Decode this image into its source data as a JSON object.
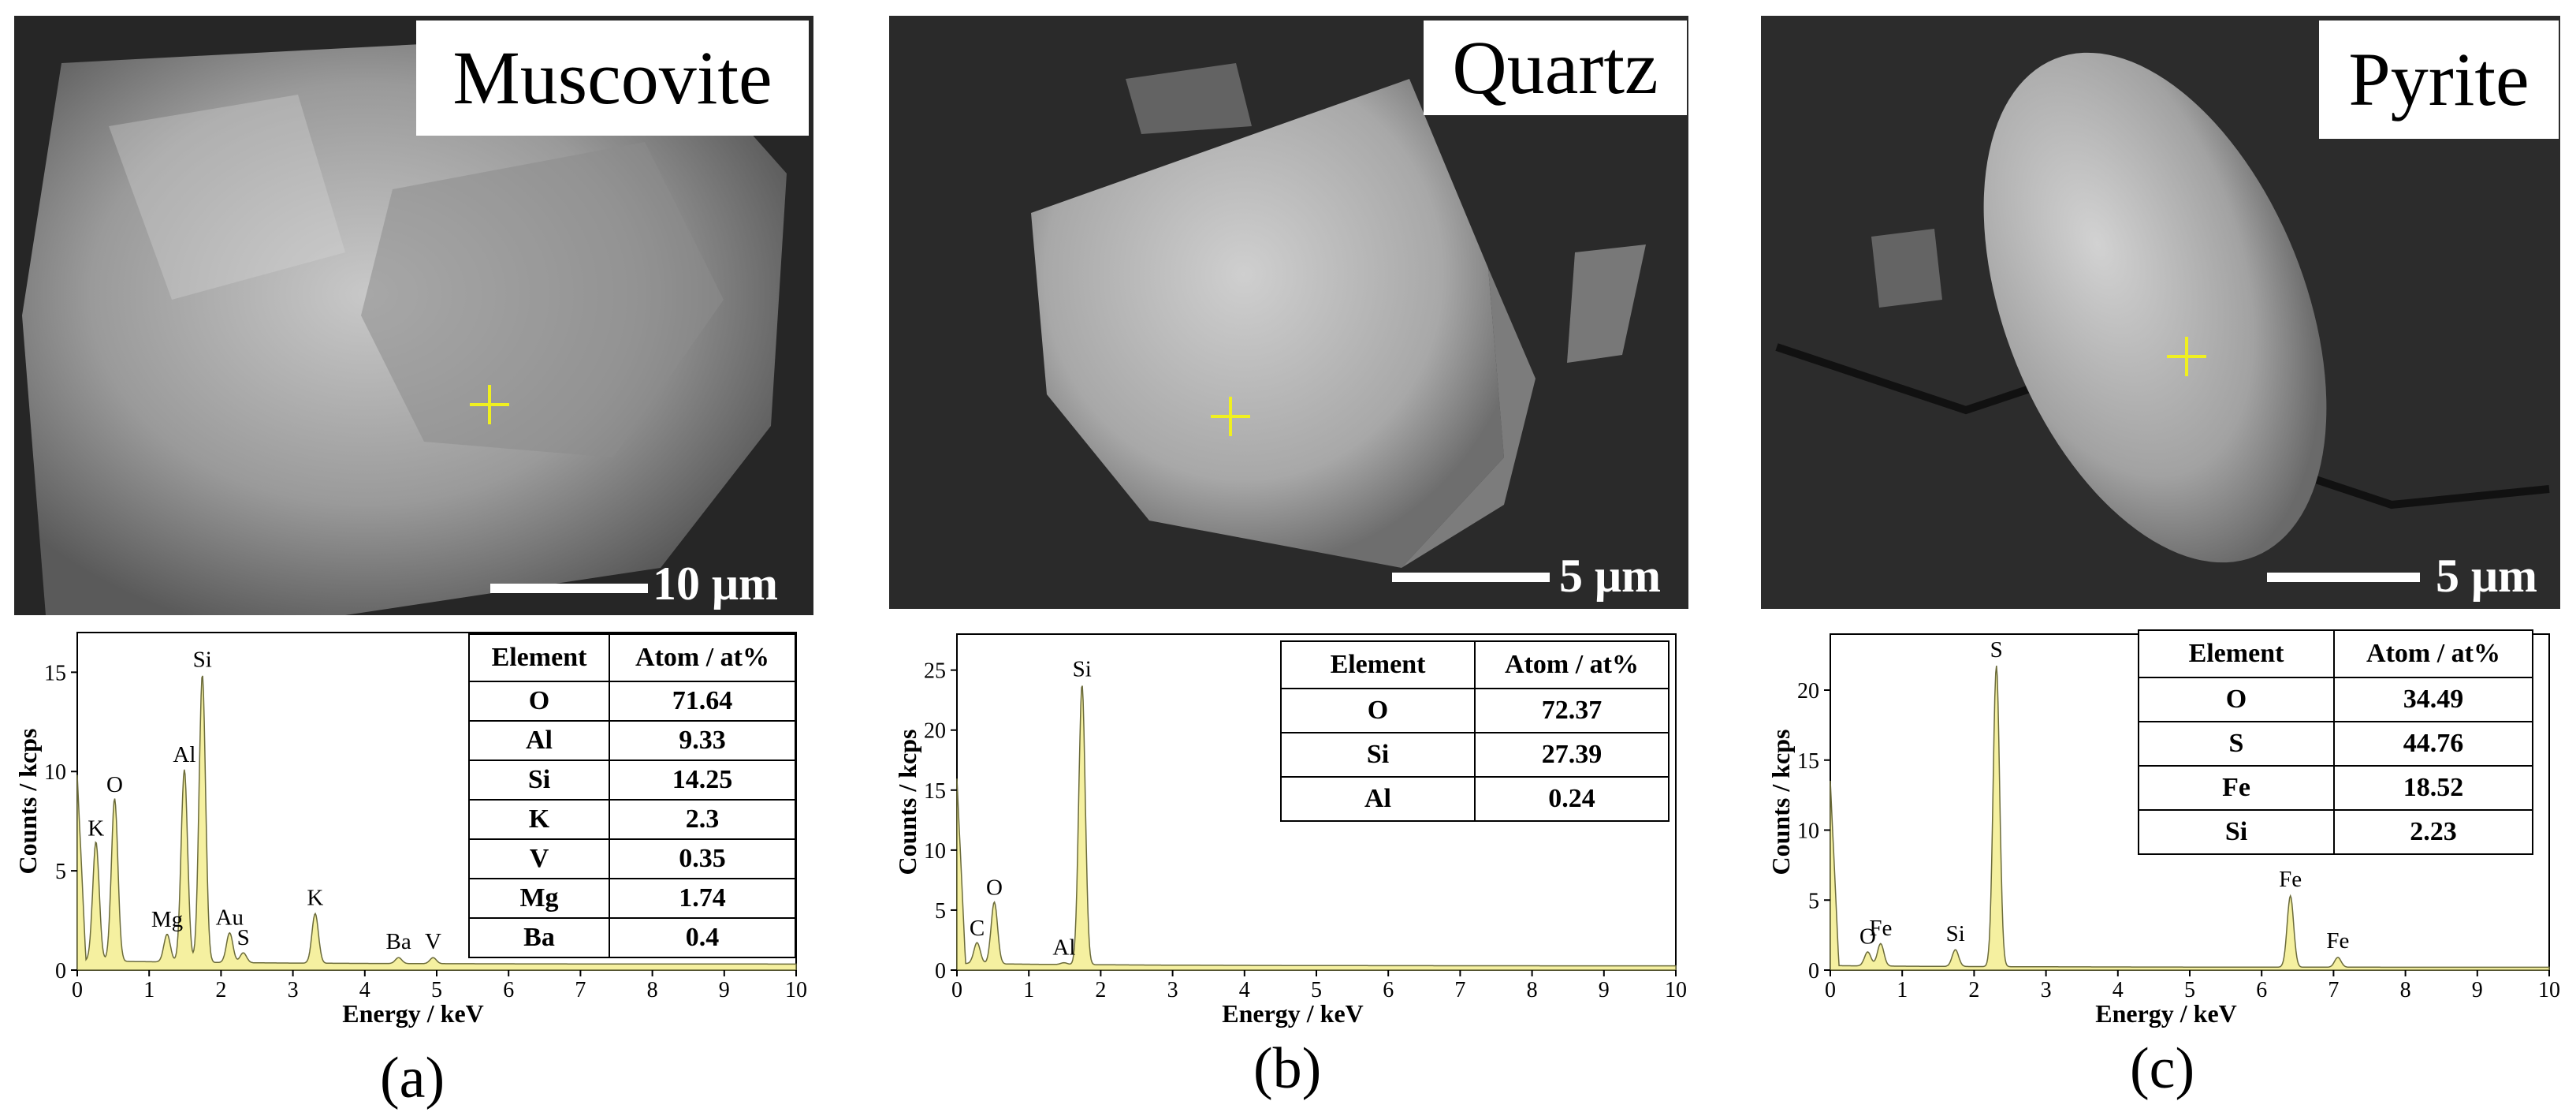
{
  "panels": [
    {
      "letter": "(a)",
      "mineral": "Muscovite",
      "scale_bar": "10 μm",
      "table": {
        "header": [
          "Element",
          "Atom / at%"
        ],
        "rows": [
          [
            "O",
            "71.64"
          ],
          [
            "Al",
            "9.33"
          ],
          [
            "Si",
            "14.25"
          ],
          [
            "K",
            "2.3"
          ],
          [
            "V",
            "0.35"
          ],
          [
            "Mg",
            "1.74"
          ],
          [
            "Ba",
            "0.4"
          ]
        ]
      }
    },
    {
      "letter": "(b)",
      "mineral": "Quartz",
      "scale_bar": "5 μm",
      "table": {
        "header": [
          "Element",
          "Atom / at%"
        ],
        "rows": [
          [
            "O",
            "72.37"
          ],
          [
            "Si",
            "27.39"
          ],
          [
            "Al",
            "0.24"
          ]
        ]
      }
    },
    {
      "letter": "(c)",
      "mineral": "Pyrite",
      "scale_bar": "5 μm",
      "table": {
        "header": [
          "Element",
          "Atom / at%"
        ],
        "rows": [
          [
            "O",
            "34.49"
          ],
          [
            "S",
            "44.76"
          ],
          [
            "Fe",
            "18.52"
          ],
          [
            "Si",
            "2.23"
          ]
        ]
      }
    }
  ],
  "chart_data": [
    {
      "type": "line",
      "xlabel": "Energy / keV",
      "ylabel": "Counts / kcps",
      "xlim": [
        0,
        10
      ],
      "ylim": [
        0,
        17
      ],
      "xticks": [
        0,
        1,
        2,
        3,
        4,
        5,
        6,
        7,
        8,
        9,
        10
      ],
      "yticks": [
        0,
        5,
        10,
        15
      ],
      "fill_color": "#f5f0a0",
      "line_color": "#6b6b3a",
      "baseline": 0.3,
      "peaks": [
        {
          "label": "K",
          "x": 0.26,
          "y": 6.3
        },
        {
          "label": "O",
          "x": 0.52,
          "y": 8.5
        },
        {
          "label": "Mg",
          "x": 1.25,
          "y": 1.7
        },
        {
          "label": "Al",
          "x": 1.49,
          "y": 10.0
        },
        {
          "label": "Si",
          "x": 1.74,
          "y": 14.8
        },
        {
          "label": "Au",
          "x": 2.12,
          "y": 1.8
        },
        {
          "label": "S",
          "x": 2.31,
          "y": 0.8
        },
        {
          "label": "K",
          "x": 3.31,
          "y": 2.8
        },
        {
          "label": "Ba",
          "x": 4.47,
          "y": 0.6
        },
        {
          "label": "V",
          "x": 4.95,
          "y": 0.6
        }
      ]
    },
    {
      "type": "line",
      "xlabel": "Energy / keV",
      "ylabel": "Counts / kcps",
      "xlim": [
        0,
        10
      ],
      "ylim": [
        0,
        28
      ],
      "xticks": [
        0,
        1,
        2,
        3,
        4,
        5,
        6,
        7,
        8,
        9,
        10
      ],
      "yticks": [
        0,
        5,
        10,
        15,
        20,
        25
      ],
      "fill_color": "#f5f0a0",
      "line_color": "#6b6b3a",
      "baseline": 0.35,
      "peaks": [
        {
          "label": "C",
          "x": 0.28,
          "y": 2.1
        },
        {
          "label": "O",
          "x": 0.52,
          "y": 5.5
        },
        {
          "label": "Al",
          "x": 1.49,
          "y": 0.5
        },
        {
          "label": "Si",
          "x": 1.74,
          "y": 23.7
        }
      ]
    },
    {
      "type": "line",
      "xlabel": "Energy / keV",
      "ylabel": "Counts / kcps",
      "xlim": [
        0,
        10
      ],
      "ylim": [
        0,
        24
      ],
      "xticks": [
        0,
        1,
        2,
        3,
        4,
        5,
        6,
        7,
        8,
        9,
        10
      ],
      "yticks": [
        0,
        5,
        10,
        15,
        20
      ],
      "fill_color": "#f5f0a0",
      "line_color": "#6b6b3a",
      "baseline": 0.2,
      "peaks": [
        {
          "label": "O",
          "x": 0.52,
          "y": 1.2
        },
        {
          "label": "Fe",
          "x": 0.7,
          "y": 1.8
        },
        {
          "label": "Si",
          "x": 1.74,
          "y": 1.4
        },
        {
          "label": "S",
          "x": 2.31,
          "y": 21.7
        },
        {
          "label": "Fe",
          "x": 6.4,
          "y": 5.3
        },
        {
          "label": "Fe",
          "x": 7.06,
          "y": 0.9
        }
      ]
    }
  ]
}
